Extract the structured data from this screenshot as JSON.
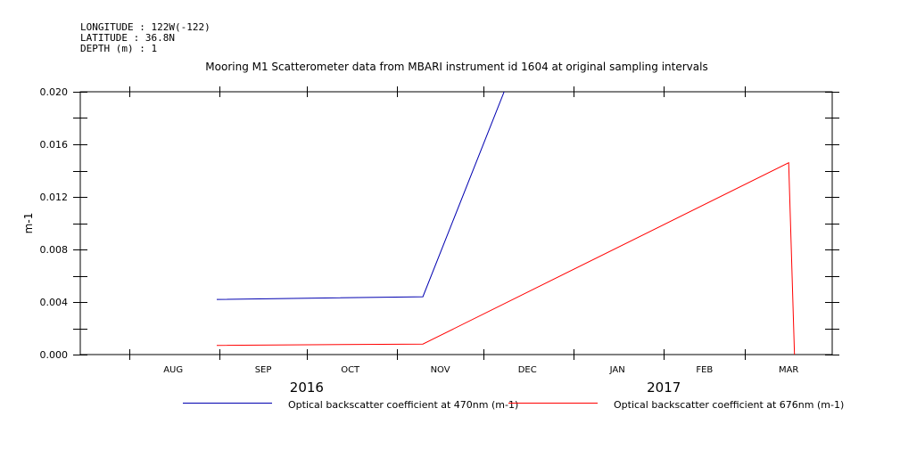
{
  "header": {
    "longitude": "LONGITUDE : 122W(-122)",
    "latitude": "LATITUDE : 36.8N",
    "depth": "DEPTH (m) : 1"
  },
  "chart_data": {
    "type": "line",
    "title": "Mooring M1 Scatterometer data from MBARI instrument id 1604 at original sampling intervals",
    "xlabel": "",
    "ylabel": "m-1",
    "ylim": [
      0.0,
      0.02
    ],
    "yticks": [
      "0.000",
      "0.004",
      "0.008",
      "0.012",
      "0.016",
      "0.020"
    ],
    "x_range": [
      "2016-07-15",
      "2017-03-31"
    ],
    "month_labels": [
      {
        "label": "AUG",
        "date": "2016-08-16"
      },
      {
        "label": "SEP",
        "date": "2016-09-16"
      },
      {
        "label": "OCT",
        "date": "2016-10-16"
      },
      {
        "label": "NOV",
        "date": "2016-11-16"
      },
      {
        "label": "DEC",
        "date": "2016-12-16"
      },
      {
        "label": "JAN",
        "date": "2017-01-16"
      },
      {
        "label": "FEB",
        "date": "2017-02-15"
      },
      {
        "label": "MAR",
        "date": "2017-03-16"
      }
    ],
    "year_labels": [
      {
        "label": "2016",
        "date": "2016-10-01"
      },
      {
        "label": "2017",
        "date": "2017-02-01"
      }
    ],
    "grid": false,
    "series": [
      {
        "name": "Optical backscatter coefficient at 470nm (m-1)",
        "color": "#0000b0",
        "x": [
          "2016-08-31",
          "2016-11-10",
          "2016-12-08"
        ],
        "y": [
          0.0042,
          0.0044,
          0.02
        ]
      },
      {
        "name": "Optical backscatter coefficient at 676nm (m-1)",
        "color": "#ff0000",
        "x": [
          "2016-08-31",
          "2016-11-10",
          "2017-03-16",
          "2017-03-18"
        ],
        "y": [
          0.0007,
          0.0008,
          0.0146,
          0.0
        ]
      }
    ]
  }
}
